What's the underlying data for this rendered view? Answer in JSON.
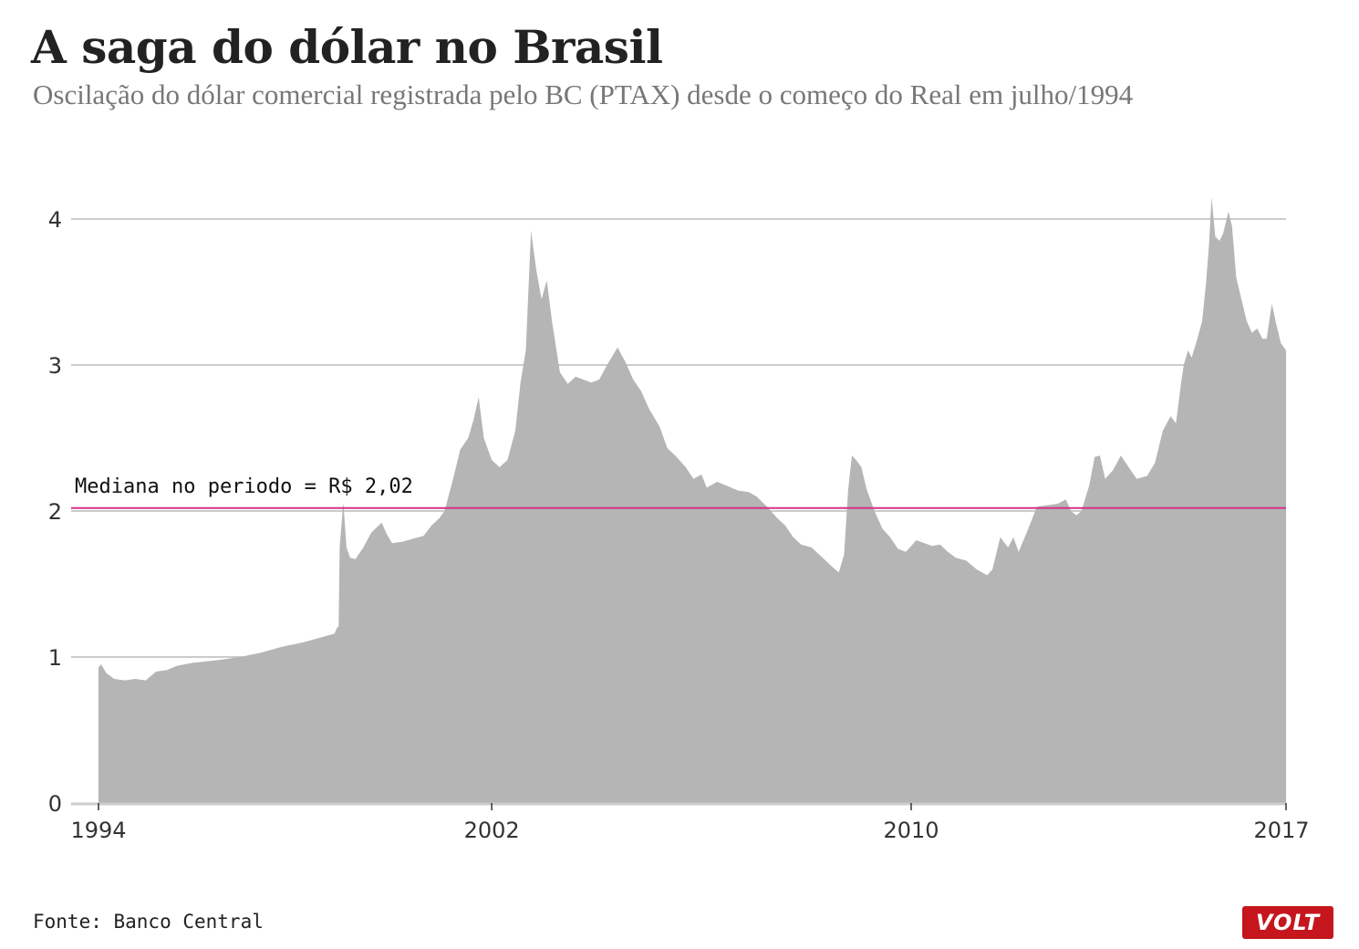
{
  "header": {
    "title": "A saga do dólar no Brasil",
    "subtitle": "Oscilação do dólar comercial registrada pelo BC (PTAX) desde o começo do Real em julho/1994"
  },
  "footer": {
    "source": "Fonte: Banco Central",
    "logo_text": "VOLT"
  },
  "colors": {
    "area": "#b5b5b5",
    "median": "#d63384",
    "grid": "#bbbbbb",
    "logo": "#c4161c"
  },
  "chart_data": {
    "type": "area",
    "title": "A saga do dólar no Brasil",
    "xlabel": "",
    "ylabel": "",
    "xlim": [
      1994.5,
      2017.15
    ],
    "ylim": [
      0,
      4.25
    ],
    "x_ticks": [
      {
        "value": 1994.5,
        "label": "1994"
      },
      {
        "value": 2002,
        "label": "2002"
      },
      {
        "value": 2010,
        "label": "2010"
      },
      {
        "value": 2017.15,
        "label": "2017"
      }
    ],
    "y_ticks": [
      0,
      1,
      2,
      3,
      4
    ],
    "grid": "horizontal",
    "annotation": {
      "label": "Mediana no periodo = R$ 2,02",
      "value": 2.02
    },
    "series": [
      {
        "points": [
          [
            1994.5,
            0.0
          ],
          [
            1994.5,
            0.93
          ],
          [
            1994.55,
            0.95
          ],
          [
            1994.65,
            0.89
          ],
          [
            1994.8,
            0.85
          ],
          [
            1995.0,
            0.84
          ],
          [
            1995.2,
            0.85
          ],
          [
            1995.4,
            0.84
          ],
          [
            1995.6,
            0.9
          ],
          [
            1995.8,
            0.91
          ],
          [
            1996.0,
            0.94
          ],
          [
            1996.3,
            0.96
          ],
          [
            1996.8,
            0.98
          ],
          [
            1997.2,
            1.0
          ],
          [
            1997.6,
            1.03
          ],
          [
            1998.0,
            1.07
          ],
          [
            1998.4,
            1.1
          ],
          [
            1998.8,
            1.14
          ],
          [
            1999.0,
            1.16
          ],
          [
            1999.05,
            1.2
          ],
          [
            1999.08,
            1.21
          ],
          [
            1999.1,
            1.75
          ],
          [
            1999.17,
            2.06
          ],
          [
            1999.23,
            1.75
          ],
          [
            1999.3,
            1.68
          ],
          [
            1999.4,
            1.67
          ],
          [
            1999.55,
            1.75
          ],
          [
            1999.7,
            1.85
          ],
          [
            1999.9,
            1.92
          ],
          [
            2000.0,
            1.84
          ],
          [
            2000.1,
            1.78
          ],
          [
            2000.3,
            1.79
          ],
          [
            2000.5,
            1.81
          ],
          [
            2000.7,
            1.83
          ],
          [
            2000.85,
            1.9
          ],
          [
            2001.0,
            1.95
          ],
          [
            2001.1,
            2.0
          ],
          [
            2001.25,
            2.2
          ],
          [
            2001.4,
            2.42
          ],
          [
            2001.55,
            2.5
          ],
          [
            2001.65,
            2.62
          ],
          [
            2001.75,
            2.78
          ],
          [
            2001.85,
            2.5
          ],
          [
            2002.0,
            2.35
          ],
          [
            2002.15,
            2.3
          ],
          [
            2002.3,
            2.35
          ],
          [
            2002.45,
            2.55
          ],
          [
            2002.55,
            2.88
          ],
          [
            2002.65,
            3.1
          ],
          [
            2002.75,
            3.92
          ],
          [
            2002.85,
            3.65
          ],
          [
            2002.95,
            3.45
          ],
          [
            2003.05,
            3.58
          ],
          [
            2003.15,
            3.3
          ],
          [
            2003.3,
            2.95
          ],
          [
            2003.45,
            2.87
          ],
          [
            2003.6,
            2.92
          ],
          [
            2003.75,
            2.9
          ],
          [
            2003.9,
            2.88
          ],
          [
            2004.05,
            2.9
          ],
          [
            2004.2,
            3.0
          ],
          [
            2004.4,
            3.12
          ],
          [
            2004.55,
            3.02
          ],
          [
            2004.7,
            2.9
          ],
          [
            2004.85,
            2.82
          ],
          [
            2005.0,
            2.7
          ],
          [
            2005.2,
            2.58
          ],
          [
            2005.35,
            2.43
          ],
          [
            2005.5,
            2.38
          ],
          [
            2005.7,
            2.3
          ],
          [
            2005.85,
            2.22
          ],
          [
            2006.0,
            2.25
          ],
          [
            2006.1,
            2.16
          ],
          [
            2006.3,
            2.2
          ],
          [
            2006.5,
            2.17
          ],
          [
            2006.7,
            2.14
          ],
          [
            2006.9,
            2.13
          ],
          [
            2007.05,
            2.1
          ],
          [
            2007.25,
            2.03
          ],
          [
            2007.45,
            1.95
          ],
          [
            2007.6,
            1.9
          ],
          [
            2007.75,
            1.82
          ],
          [
            2007.9,
            1.77
          ],
          [
            2008.1,
            1.75
          ],
          [
            2008.25,
            1.7
          ],
          [
            2008.4,
            1.65
          ],
          [
            2008.55,
            1.6
          ],
          [
            2008.62,
            1.58
          ],
          [
            2008.72,
            1.7
          ],
          [
            2008.8,
            2.15
          ],
          [
            2008.87,
            2.38
          ],
          [
            2008.95,
            2.35
          ],
          [
            2009.05,
            2.3
          ],
          [
            2009.15,
            2.15
          ],
          [
            2009.3,
            2.0
          ],
          [
            2009.45,
            1.88
          ],
          [
            2009.6,
            1.82
          ],
          [
            2009.75,
            1.74
          ],
          [
            2009.9,
            1.72
          ],
          [
            2010.1,
            1.8
          ],
          [
            2010.25,
            1.78
          ],
          [
            2010.4,
            1.76
          ],
          [
            2010.55,
            1.77
          ],
          [
            2010.7,
            1.72
          ],
          [
            2010.85,
            1.68
          ],
          [
            2011.05,
            1.66
          ],
          [
            2011.25,
            1.6
          ],
          [
            2011.45,
            1.56
          ],
          [
            2011.55,
            1.6
          ],
          [
            2011.7,
            1.82
          ],
          [
            2011.85,
            1.75
          ],
          [
            2011.95,
            1.82
          ],
          [
            2012.05,
            1.72
          ],
          [
            2012.2,
            1.85
          ],
          [
            2012.4,
            2.03
          ],
          [
            2012.6,
            2.04
          ],
          [
            2012.8,
            2.05
          ],
          [
            2012.95,
            2.08
          ],
          [
            2013.05,
            2.0
          ],
          [
            2013.15,
            1.97
          ],
          [
            2013.25,
            2.0
          ],
          [
            2013.4,
            2.18
          ],
          [
            2013.5,
            2.37
          ],
          [
            2013.6,
            2.38
          ],
          [
            2013.7,
            2.22
          ],
          [
            2013.85,
            2.28
          ],
          [
            2014.0,
            2.38
          ],
          [
            2014.15,
            2.3
          ],
          [
            2014.3,
            2.22
          ],
          [
            2014.5,
            2.24
          ],
          [
            2014.65,
            2.33
          ],
          [
            2014.8,
            2.55
          ],
          [
            2014.95,
            2.65
          ],
          [
            2015.05,
            2.6
          ],
          [
            2015.15,
            2.88
          ],
          [
            2015.2,
            3.0
          ],
          [
            2015.28,
            3.1
          ],
          [
            2015.35,
            3.05
          ],
          [
            2015.45,
            3.17
          ],
          [
            2015.55,
            3.3
          ],
          [
            2015.62,
            3.55
          ],
          [
            2015.68,
            3.82
          ],
          [
            2015.73,
            4.15
          ],
          [
            2015.8,
            3.88
          ],
          [
            2015.88,
            3.85
          ],
          [
            2015.95,
            3.9
          ],
          [
            2016.05,
            4.05
          ],
          [
            2016.12,
            3.95
          ],
          [
            2016.2,
            3.6
          ],
          [
            2016.3,
            3.45
          ],
          [
            2016.4,
            3.3
          ],
          [
            2016.5,
            3.22
          ],
          [
            2016.6,
            3.25
          ],
          [
            2016.7,
            3.18
          ],
          [
            2016.78,
            3.18
          ],
          [
            2016.88,
            3.42
          ],
          [
            2016.95,
            3.3
          ],
          [
            2017.05,
            3.15
          ],
          [
            2017.15,
            3.1
          ],
          [
            2017.15,
            0.0
          ]
        ]
      }
    ]
  }
}
